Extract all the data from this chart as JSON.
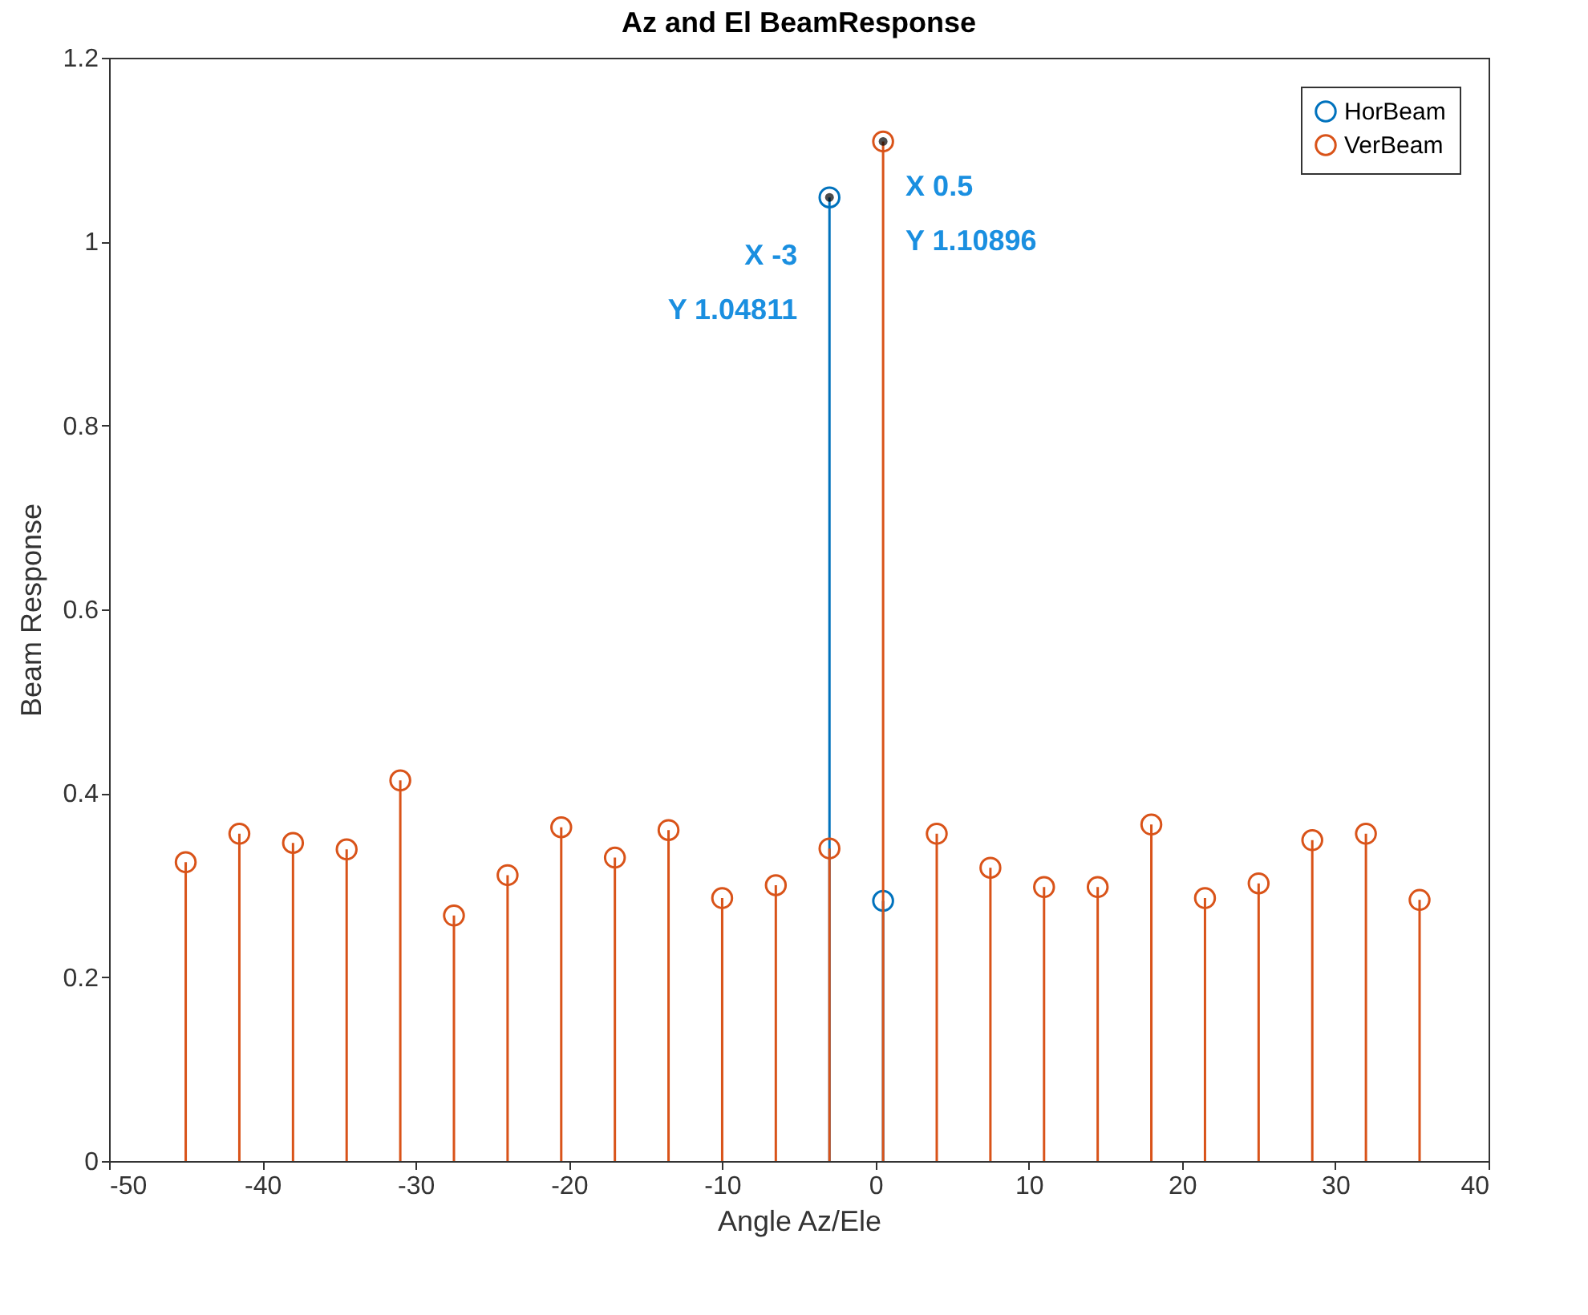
{
  "chart_data": {
    "type": "lollipop",
    "title": "Az and El BeamResponse",
    "xlabel": "Angle Az/Ele",
    "ylabel": "Beam Response",
    "xlim": [
      -50,
      40
    ],
    "xticks": [
      -50,
      -40,
      -30,
      -20,
      -10,
      0,
      10,
      20,
      30,
      40
    ],
    "ylim": [
      0,
      1.2
    ],
    "yticks": [
      0,
      0.2,
      0.4,
      0.6,
      0.8,
      1,
      1.2
    ],
    "grid": false,
    "legend": "top right",
    "marker": "circle",
    "series": [
      {
        "name": "HorBeam",
        "color": "#0072bd",
        "x": [
          -3,
          0.5
        ],
        "values": [
          1.04811,
          0.283
        ]
      },
      {
        "name": "VerBeam",
        "color": "#d95319",
        "x": [
          -45,
          -41.5,
          -38,
          -34.5,
          -31,
          -27.5,
          -24,
          -20.5,
          -17,
          -13.5,
          -10,
          -6.5,
          -3,
          0.5,
          4,
          7.5,
          11,
          14.5,
          18,
          21.5,
          25,
          28.5,
          32,
          35.5
        ],
        "values": [
          0.325,
          0.356,
          0.346,
          0.339,
          0.414,
          0.267,
          0.311,
          0.363,
          0.33,
          0.36,
          0.286,
          0.3,
          0.34,
          1.10896,
          0.356,
          0.319,
          0.298,
          0.298,
          0.366,
          0.286,
          0.302,
          0.349,
          0.356,
          0.284
        ]
      }
    ],
    "annotations": [
      {
        "text": "X -3\nY 1.04811",
        "x": -3,
        "y": 1.04811
      },
      {
        "text": "X 0.5\nY 1.10896",
        "x": 0.5,
        "y": 1.10896
      }
    ]
  }
}
